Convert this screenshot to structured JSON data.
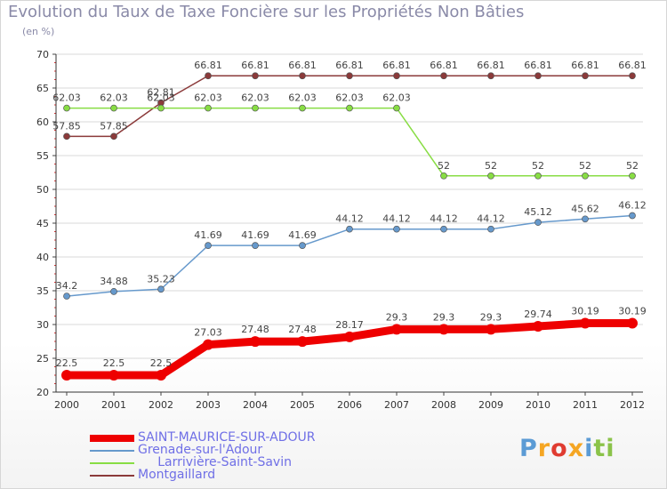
{
  "header": {
    "title": "Evolution du Taux de Taxe Foncière sur les Propriétés Non Bâties",
    "unit": "(en %)"
  },
  "logo": {
    "text": "Proxiti",
    "colors": [
      "#5b9bd5",
      "#f5a623",
      "#e03c31",
      "#8bc34a"
    ]
  },
  "chart_data": {
    "type": "line",
    "title": "Evolution du Taux de Taxe Foncière sur les Propriétés Non Bâties",
    "ylabel": "(en %)",
    "xlabel": "",
    "ylim": [
      20,
      70
    ],
    "yticks": [
      "20",
      "25",
      "30",
      "35",
      "40",
      "45",
      "50",
      "55",
      "60",
      "65",
      "70"
    ],
    "categories": [
      "2000",
      "2001",
      "2002",
      "2003",
      "2004",
      "2005",
      "2006",
      "2007",
      "2008",
      "2009",
      "2010",
      "2011",
      "2012"
    ],
    "grid": "horizontal",
    "legend_position": "bottom-left",
    "series": [
      {
        "name": "SAINT-MAURICE-SUR-ADOUR",
        "color": "#ee0000",
        "values": [
          22.5,
          22.5,
          22.5,
          27.03,
          27.48,
          27.48,
          28.17,
          29.3,
          29.3,
          29.3,
          29.74,
          30.19,
          30.19
        ],
        "labels": [
          "22.5",
          "22.5",
          "22.5",
          "27.03",
          "27.48",
          "27.48",
          "28.17",
          "29.3",
          "29.3",
          "29.3",
          "29.74",
          "30.19",
          "30.19"
        ]
      },
      {
        "name": "Grenade-sur-l'Adour",
        "color": "#6699cc",
        "values": [
          34.2,
          34.88,
          35.23,
          41.69,
          41.69,
          41.69,
          44.12,
          44.12,
          44.12,
          44.12,
          45.12,
          45.62,
          46.12
        ],
        "labels": [
          "34.2",
          "34.88",
          "35.23",
          "41.69",
          "41.69",
          "41.69",
          "44.12",
          "44.12",
          "44.12",
          "44.12",
          "45.12",
          "45.62",
          "46.12"
        ]
      },
      {
        "name": "     Larrivière-Saint-Savin",
        "color": "#88dd44",
        "values": [
          62.03,
          62.03,
          62.03,
          62.03,
          62.03,
          62.03,
          62.03,
          62.03,
          52,
          52,
          52,
          52,
          52
        ],
        "labels": [
          "62.03",
          "62.03",
          "62.03",
          "62.03",
          "62.03",
          "62.03",
          "62.03",
          "62.03",
          "52",
          "52",
          "52",
          "52",
          "52"
        ]
      },
      {
        "name": "Montgaillard",
        "color": "#8b3a3a",
        "values": [
          57.85,
          57.85,
          62.81,
          66.81,
          66.81,
          66.81,
          66.81,
          66.81,
          66.81,
          66.81,
          66.81,
          66.81,
          66.81
        ],
        "labels": [
          "57.85",
          "57.85",
          "62.81",
          "66.81",
          "66.81",
          "66.81",
          "66.81",
          "66.81",
          "66.81",
          "66.81",
          "66.81",
          "66.81",
          "66.81"
        ]
      }
    ]
  }
}
